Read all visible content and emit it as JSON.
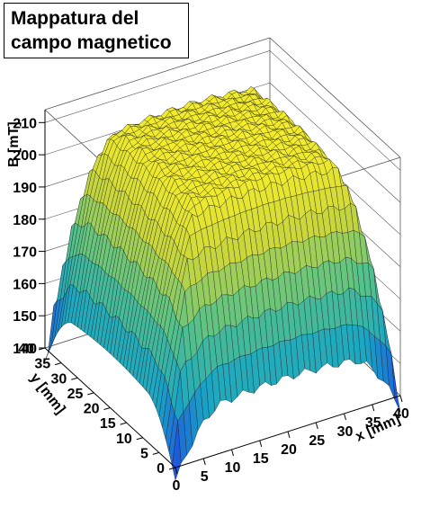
{
  "chart_data": {
    "type": "surface3d",
    "title_lines": [
      "Mappatura del",
      "campo magnetico"
    ],
    "xlabel": "x [mm]",
    "ylabel": "y [mm]",
    "zlabel": "B [mT]",
    "xlim": [
      0,
      40
    ],
    "ylim": [
      0,
      40
    ],
    "zlim": [
      140,
      214
    ],
    "x_ticks": [
      "0",
      "5",
      "10",
      "15",
      "20",
      "25",
      "30",
      "35",
      "40"
    ],
    "y_ticks": [
      "0",
      "5",
      "10",
      "15",
      "20",
      "25",
      "30",
      "35",
      "40"
    ],
    "z_ticks": [
      "140",
      "150",
      "160",
      "170",
      "180",
      "190",
      "200",
      "210"
    ],
    "grid_points": 41,
    "field_model": {
      "peak_value": 213,
      "plateau_value": 207,
      "edge_value": 155,
      "corner_value": 136,
      "plateau_halfwidth": 12,
      "edge_width": 6
    },
    "colormap": [
      "#1f4fe0",
      "#1aa6c4",
      "#55c28a",
      "#c9d63c",
      "#f7ee2a"
    ]
  }
}
